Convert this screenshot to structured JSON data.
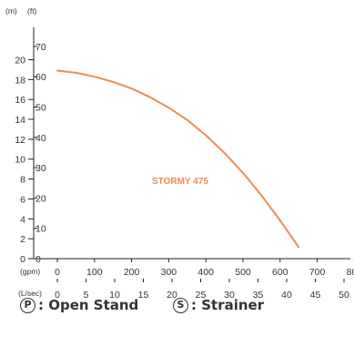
{
  "chart_data": {
    "type": "line",
    "title": "",
    "series": [
      {
        "name": "STORMY 475",
        "color": "#f08c4f",
        "x_gpm": [
          0,
          50,
          100,
          150,
          200,
          250,
          300,
          350,
          400,
          450,
          500,
          550,
          600,
          650
        ],
        "y_ft": [
          62,
          61.3,
          60,
          58.3,
          56.1,
          53.2,
          49.8,
          45.7,
          40.7,
          34.9,
          28.3,
          20.8,
          12.6,
          3.8
        ]
      }
    ],
    "series_label": "STORMY 475",
    "axes": {
      "y_left_unit": "(m)",
      "y_left_ticks": [
        "0",
        "2",
        "4",
        "6",
        "8",
        "10",
        "12",
        "14",
        "16",
        "18",
        "20"
      ],
      "y_left_range": [
        0,
        20
      ],
      "y_right_unit": "(ft)",
      "y_right_ticks": [
        "0",
        "10",
        "20",
        "30",
        "40",
        "50",
        "60",
        "70"
      ],
      "y_right_range": [
        0,
        70
      ],
      "x_primary_unit": "(gpm)",
      "x_primary_ticks": [
        "0",
        "100",
        "200",
        "300",
        "400",
        "500",
        "600",
        "700",
        "800"
      ],
      "x_primary_range": [
        0,
        800
      ],
      "x_secondary_unit": "(L/sec)",
      "x_secondary_ticks": [
        "0",
        "5",
        "10",
        "15",
        "20",
        "25",
        "30",
        "35",
        "40",
        "45",
        "50"
      ],
      "x_secondary_range": [
        0,
        50
      ]
    },
    "grid": false
  },
  "legend": [
    {
      "symbol": "P",
      "label": ": Open Stand"
    },
    {
      "symbol": "S",
      "label": ": Strainer"
    }
  ]
}
